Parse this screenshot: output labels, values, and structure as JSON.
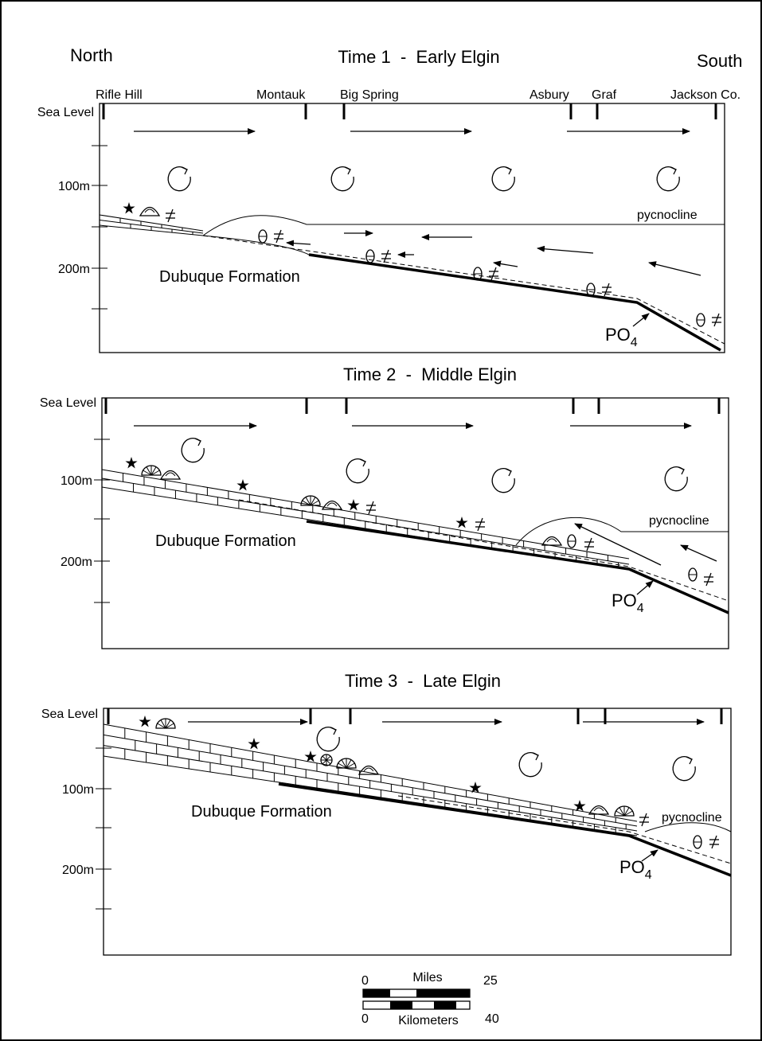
{
  "header": {
    "north": "North",
    "south": "South"
  },
  "locations": [
    "Rifle Hill",
    "Montauk",
    "Big Spring",
    "Asbury",
    "Graf",
    "Jackson Co."
  ],
  "panels": [
    {
      "title": "Time 1  -  Early Elgin",
      "sea_level": "Sea Level",
      "depths": [
        "100m",
        "200m"
      ],
      "formation": "Dubuque Formation",
      "pycnocline": "pycnocline",
      "nutrient": {
        "base": "PO",
        "sub": "4"
      }
    },
    {
      "title": "Time 2  -  Middle Elgin",
      "sea_level": "Sea Level",
      "depths": [
        "100m",
        "200m"
      ],
      "formation": "Dubuque Formation",
      "pycnocline": "pycnocline",
      "nutrient": {
        "base": "PO",
        "sub": "4"
      }
    },
    {
      "title": "Time 3  -  Late Elgin",
      "sea_level": "Sea Level",
      "depths": [
        "100m",
        "200m"
      ],
      "formation": "Dubuque Formation",
      "pycnocline": "pycnocline",
      "nutrient": {
        "base": "PO",
        "sub": "4"
      }
    }
  ],
  "scale": {
    "miles": {
      "start": "0",
      "label": "Miles",
      "end": "25"
    },
    "km": {
      "start": "0",
      "label": "Kilometers",
      "end": "40"
    }
  }
}
